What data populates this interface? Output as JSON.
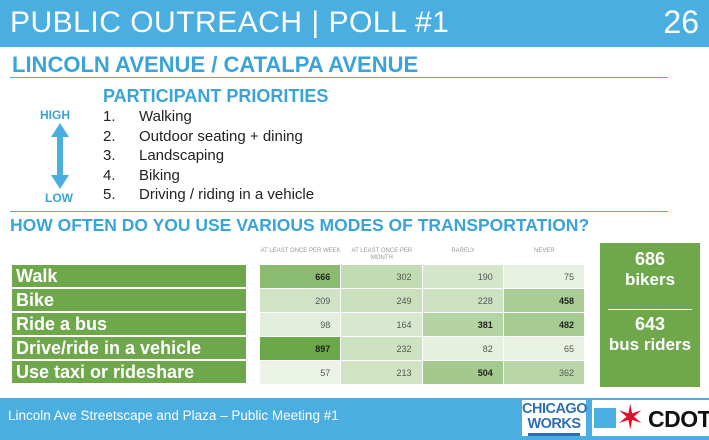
{
  "header": {
    "title": "PUBLIC OUTREACH | POLL #1",
    "slide_number": "26"
  },
  "subtitle": "LINCOLN AVENUE / CATALPA AVENUE",
  "priorities": {
    "title": "PARTICIPANT PRIORITIES",
    "high_label": "HIGH",
    "low_label": "LOW",
    "items": [
      {
        "num": "1.",
        "label": "Walking"
      },
      {
        "num": "2.",
        "label": "Outdoor seating + dining"
      },
      {
        "num": "3.",
        "label": "Landscaping"
      },
      {
        "num": "4.",
        "label": "Biking"
      },
      {
        "num": "5.",
        "label": "Driving / riding in a vehicle"
      }
    ]
  },
  "question": "HOW OFTEN DO YOU USE VARIOUS MODES OF TRANSPORTATION?",
  "table": {
    "columns": [
      "AT LEAST ONCE PER WEEK",
      "AT LEAST ONCE PER MONTH",
      "RARELY",
      "NEVER"
    ],
    "rows": [
      {
        "mode": "Walk",
        "values": [
          "666",
          "302",
          "190",
          "75"
        ]
      },
      {
        "mode": "Bike",
        "values": [
          "209",
          "249",
          "228",
          "458"
        ]
      },
      {
        "mode": "Ride a bus",
        "values": [
          "98",
          "164",
          "381",
          "482"
        ]
      },
      {
        "mode": "Drive/ride in a vehicle",
        "values": [
          "897",
          "232",
          "82",
          "65"
        ]
      },
      {
        "mode": "Use taxi or rideshare",
        "values": [
          "57",
          "213",
          "504",
          "362"
        ]
      }
    ]
  },
  "stats": {
    "bikers_count": "686",
    "bikers_label": "bikers",
    "bus_count": "643",
    "bus_label": "bus riders"
  },
  "footer": {
    "text": "Lincoln Ave Streetscape and Plaza – Public Meeting #1",
    "logo_chicago_works_line1": "CHICAGO",
    "logo_chicago_works_line2": "WORKS",
    "logo_cdot": "CDOT"
  },
  "colors": {
    "header_blue": "#4aaee0",
    "accent_blue": "#3aa3d8",
    "label_green": "#6fa84a",
    "cdot_red": "#e0102a"
  }
}
